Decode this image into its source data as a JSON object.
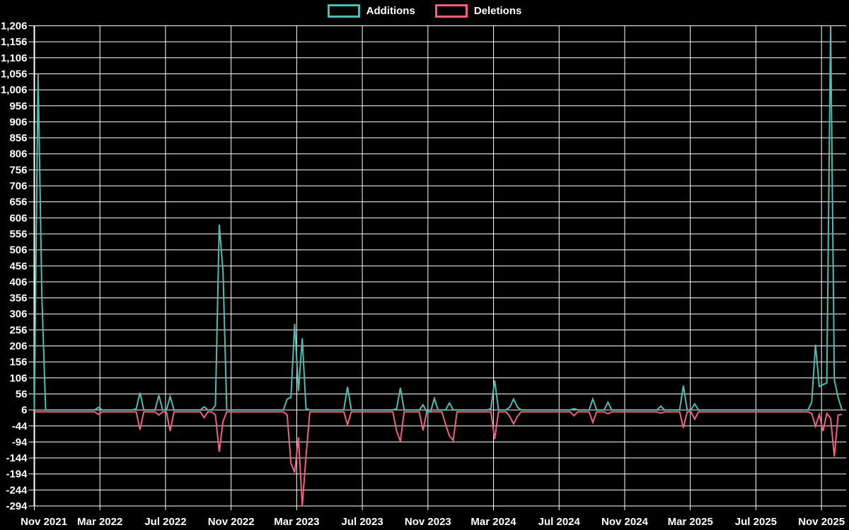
{
  "chart_data": {
    "type": "line",
    "title": "",
    "legend": [
      {
        "label": "Additions",
        "color": "#4dbdb2"
      },
      {
        "label": "Deletions",
        "color": "#f0607e"
      }
    ],
    "x_tick_labels": [
      "Nov 2021",
      "Mar 2022",
      "Jul 2022",
      "Nov 2022",
      "Mar 2023",
      "Jul 2023",
      "Nov 2023",
      "Mar 2024",
      "Jul 2024",
      "Nov 2024",
      "Mar 2025",
      "Jul 2025",
      "Nov 2025"
    ],
    "y_axis": {
      "min": -294,
      "max": 1206,
      "step": 50
    },
    "x_layout": {
      "n_points": 215,
      "points_per_gridline": 17.383,
      "unit": "weeks since Nov 2021"
    },
    "colors": {
      "background": "#000000",
      "grid": "#ffffff",
      "text": "#ffffff"
    },
    "grid": true,
    "legend_position": "top-center",
    "series": [
      {
        "name": "Additions",
        "color": "#4dbdb2",
        "baseline": 6,
        "points": [
          [
            1,
            1056
          ],
          [
            2,
            360
          ],
          [
            17,
            14
          ],
          [
            27,
            10
          ],
          [
            28,
            60
          ],
          [
            33,
            52
          ],
          [
            36,
            48
          ],
          [
            45,
            16
          ],
          [
            48,
            20
          ],
          [
            49,
            585
          ],
          [
            50,
            440
          ],
          [
            67,
            40
          ],
          [
            68,
            45
          ],
          [
            69,
            275
          ],
          [
            70,
            65
          ],
          [
            71,
            230
          ],
          [
            72,
            10
          ],
          [
            83,
            78
          ],
          [
            96,
            10
          ],
          [
            97,
            75
          ],
          [
            103,
            22
          ],
          [
            104,
            0
          ],
          [
            105,
            0
          ],
          [
            106,
            42
          ],
          [
            110,
            28
          ],
          [
            121,
            10
          ],
          [
            122,
            98
          ],
          [
            126,
            15
          ],
          [
            127,
            40
          ],
          [
            128,
            15
          ],
          [
            143,
            10
          ],
          [
            148,
            40
          ],
          [
            152,
            30
          ],
          [
            166,
            18
          ],
          [
            172,
            82
          ],
          [
            175,
            25
          ],
          [
            206,
            30
          ],
          [
            207,
            210
          ],
          [
            208,
            79
          ],
          [
            209,
            85
          ],
          [
            210,
            90
          ],
          [
            211,
            1206
          ],
          [
            212,
            100
          ],
          [
            213,
            45
          ],
          [
            214,
            6
          ]
        ]
      },
      {
        "name": "Deletions",
        "color": "#f0607e",
        "baseline": 0,
        "points": [
          [
            17,
            -8
          ],
          [
            28,
            -56
          ],
          [
            33,
            -10
          ],
          [
            36,
            -60
          ],
          [
            45,
            -18
          ],
          [
            48,
            -10
          ],
          [
            49,
            -125
          ],
          [
            50,
            -30
          ],
          [
            67,
            -10
          ],
          [
            68,
            -160
          ],
          [
            69,
            -190
          ],
          [
            70,
            -80
          ],
          [
            71,
            -294
          ],
          [
            72,
            -140
          ],
          [
            83,
            -40
          ],
          [
            96,
            -60
          ],
          [
            97,
            -92
          ],
          [
            103,
            -58
          ],
          [
            109,
            -40
          ],
          [
            110,
            -75
          ],
          [
            111,
            -89
          ],
          [
            122,
            -85
          ],
          [
            126,
            -15
          ],
          [
            127,
            -38
          ],
          [
            128,
            -15
          ],
          [
            143,
            -12
          ],
          [
            148,
            -33
          ],
          [
            152,
            -6
          ],
          [
            166,
            -4
          ],
          [
            172,
            -50
          ],
          [
            175,
            -23
          ],
          [
            206,
            -5
          ],
          [
            207,
            -45
          ],
          [
            208,
            -8
          ],
          [
            209,
            -60
          ],
          [
            210,
            -5
          ],
          [
            211,
            -20
          ],
          [
            212,
            -140
          ],
          [
            213,
            -10
          ],
          [
            214,
            -8
          ]
        ]
      }
    ]
  }
}
